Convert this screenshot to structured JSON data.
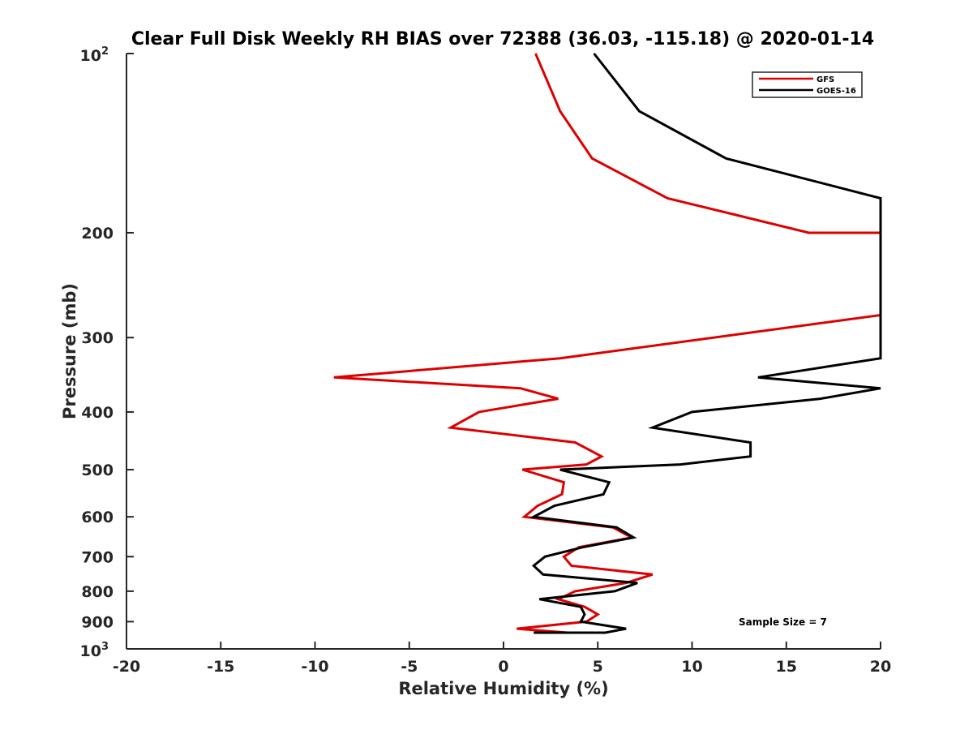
{
  "chart_data": {
    "type": "line",
    "title": "Clear Full Disk Weekly RH BIAS over 72388 (36.03, -115.18) @ 2020-01-14",
    "xlabel": "Relative Humidity (%)",
    "ylabel": "Pressure (mb)",
    "xlim": [
      -20,
      20
    ],
    "ylim": [
      100,
      1000
    ],
    "yscale": "log",
    "y_reversed": true,
    "grid": false,
    "legend_placement": "top-right",
    "x_ticks": [
      "-20",
      "-15",
      "-10",
      "-5",
      "0",
      "5",
      "10",
      "15",
      "20"
    ],
    "y_ticks": [
      "200",
      "300",
      "400",
      "500",
      "600",
      "700",
      "800",
      "900"
    ],
    "y_tick_values": [
      200,
      300,
      400,
      500,
      600,
      700,
      800,
      900
    ],
    "y_tick_top": {
      "base": "10",
      "exp": "2"
    },
    "y_tick_bottom": {
      "base": "10",
      "exp": "3"
    },
    "annotation": "Sample Size = 7",
    "series": [
      {
        "name": "GFS",
        "color": "#dd0000",
        "points": [
          [
            1.7,
            100
          ],
          [
            3.0,
            125
          ],
          [
            4.7,
            150
          ],
          [
            8.7,
            175
          ],
          [
            16.2,
            200
          ],
          [
            20.0,
            200
          ],
          [
            20.0,
            275
          ],
          [
            3.0,
            325
          ],
          [
            -9.0,
            350
          ],
          [
            0.9,
            365
          ],
          [
            2.9,
            380
          ],
          [
            -1.3,
            400
          ],
          [
            -2.8,
            425
          ],
          [
            3.8,
            450
          ],
          [
            5.2,
            475
          ],
          [
            4.4,
            490
          ],
          [
            1.0,
            500
          ],
          [
            3.2,
            525
          ],
          [
            3.1,
            550
          ],
          [
            1.8,
            575
          ],
          [
            1.1,
            600
          ],
          [
            5.8,
            625
          ],
          [
            6.8,
            650
          ],
          [
            4.0,
            675
          ],
          [
            3.2,
            700
          ],
          [
            3.6,
            725
          ],
          [
            7.9,
            750
          ],
          [
            6.5,
            775
          ],
          [
            3.8,
            800
          ],
          [
            2.9,
            825
          ],
          [
            4.3,
            850
          ],
          [
            5.0,
            875
          ],
          [
            4.4,
            900
          ],
          [
            0.7,
            925
          ],
          [
            3.4,
            950
          ]
        ]
      },
      {
        "name": "GOES-16",
        "color": "#000000",
        "points": [
          [
            4.8,
            100
          ],
          [
            7.2,
            125
          ],
          [
            11.8,
            150
          ],
          [
            20.0,
            175
          ],
          [
            20.0,
            325
          ],
          [
            13.5,
            350
          ],
          [
            20.0,
            365
          ],
          [
            16.8,
            380
          ],
          [
            10.0,
            400
          ],
          [
            7.9,
            425
          ],
          [
            13.1,
            450
          ],
          [
            13.1,
            475
          ],
          [
            9.4,
            490
          ],
          [
            3.0,
            500
          ],
          [
            5.6,
            525
          ],
          [
            5.3,
            550
          ],
          [
            2.7,
            575
          ],
          [
            1.6,
            600
          ],
          [
            6.0,
            625
          ],
          [
            6.9,
            650
          ],
          [
            4.2,
            675
          ],
          [
            2.2,
            700
          ],
          [
            1.6,
            725
          ],
          [
            2.1,
            750
          ],
          [
            7.1,
            775
          ],
          [
            5.9,
            800
          ],
          [
            1.9,
            825
          ],
          [
            4.1,
            850
          ],
          [
            4.3,
            875
          ],
          [
            4.1,
            900
          ],
          [
            6.5,
            925
          ],
          [
            5.4,
            950
          ],
          [
            1.6,
            975
          ],
          [
            3.4,
            1000
          ]
        ]
      }
    ]
  }
}
